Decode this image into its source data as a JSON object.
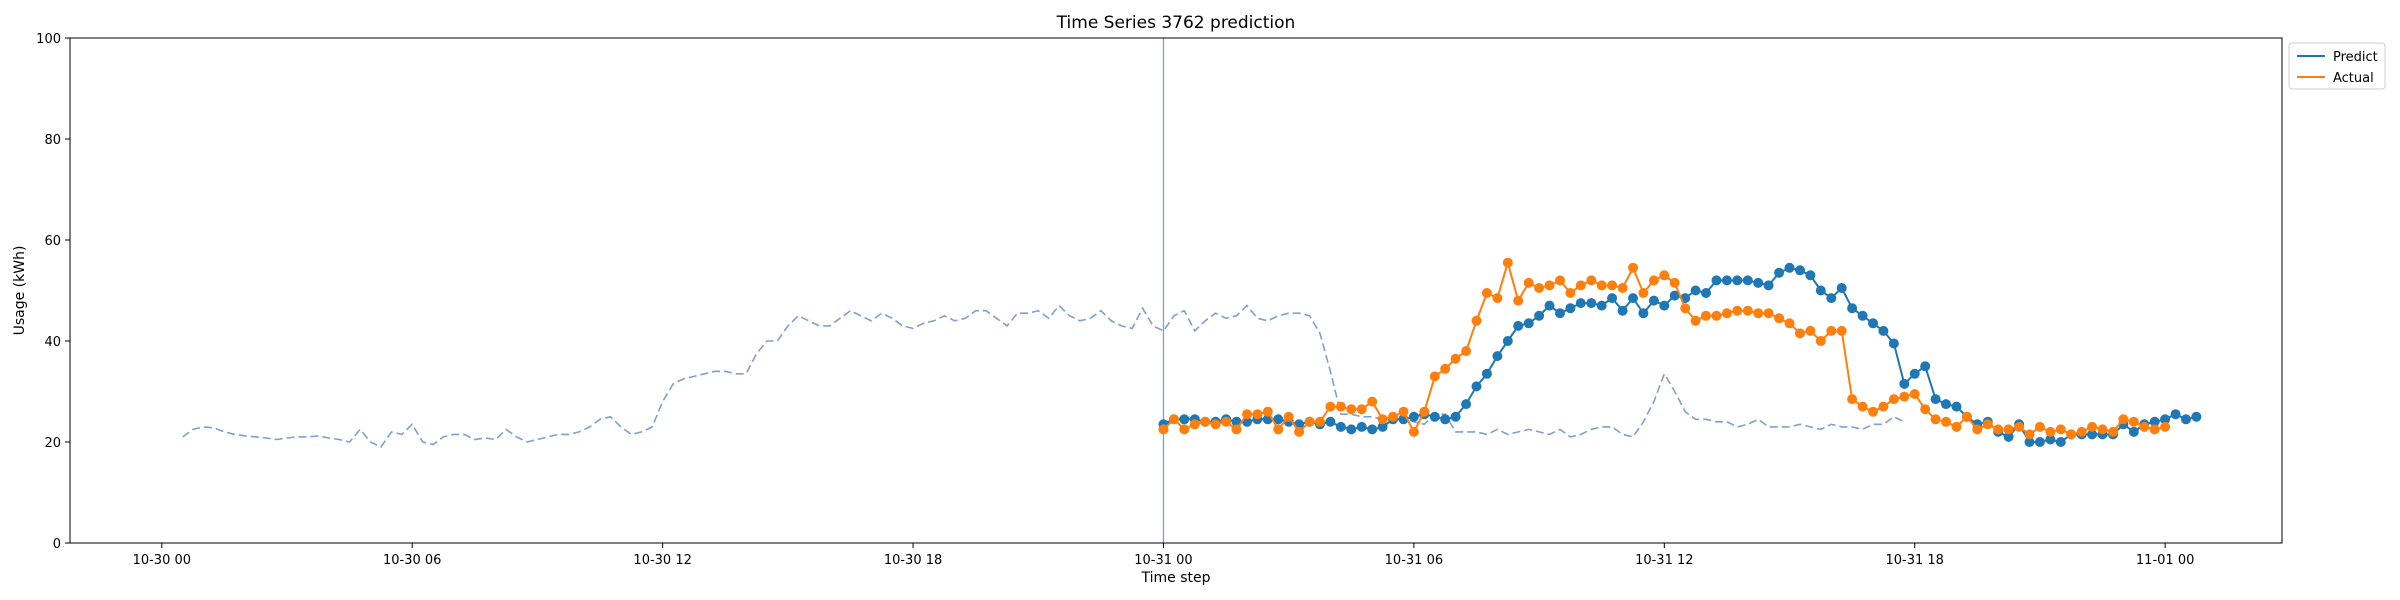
{
  "chart_data": {
    "type": "line",
    "title": "Time Series 3762 prediction",
    "xlabel": "Time step",
    "ylabel": "Usage (kWh)",
    "ylim": [
      0,
      100
    ],
    "yticks": [
      0,
      20,
      40,
      60,
      80,
      100
    ],
    "xlim_hours": [
      -2.2,
      50.8
    ],
    "xticks": [
      {
        "hour": 0,
        "label": "10-30 00"
      },
      {
        "hour": 6,
        "label": "10-30 06"
      },
      {
        "hour": 12,
        "label": "10-30 12"
      },
      {
        "hour": 18,
        "label": "10-30 18"
      },
      {
        "hour": 24,
        "label": "10-31 00"
      },
      {
        "hour": 30,
        "label": "10-31 06"
      },
      {
        "hour": 36,
        "label": "10-31 12"
      },
      {
        "hour": 42,
        "label": "10-31 18"
      },
      {
        "hour": 48,
        "label": "11-01 00"
      }
    ],
    "forecast_start_hour": 24.0,
    "step_hours": 0.25,
    "history": {
      "start_hour": 0.5,
      "values": [
        21,
        22.5,
        23,
        22.8,
        22,
        21.5,
        21.2,
        21,
        20.8,
        20.5,
        20.8,
        21,
        21,
        21.2,
        20.8,
        20.5,
        20,
        22.5,
        20,
        19,
        22,
        21.5,
        23.5,
        20,
        19.5,
        21,
        21.5,
        21.5,
        20.5,
        20.8,
        20.5,
        22.5,
        21,
        20,
        20.5,
        21,
        21.5,
        21.5,
        22,
        23,
        24.5,
        25,
        23,
        21.5,
        22,
        23,
        28,
        31.5,
        32.5,
        33,
        33.5,
        34,
        34,
        33.5,
        33.5,
        37.5,
        40,
        40,
        43,
        45,
        44,
        43,
        43,
        44.5,
        46,
        45,
        44,
        45.5,
        44.5,
        43,
        42.5,
        43.5,
        44,
        45,
        44,
        44.5,
        46,
        46,
        44.5,
        43,
        45.5,
        45.5,
        46,
        44.5,
        47,
        45,
        44,
        44.5,
        46,
        44,
        43,
        42.5,
        46.5,
        43,
        42,
        45,
        46,
        42,
        44,
        45.5,
        44.5,
        45,
        47,
        44.5,
        44,
        45,
        45.5,
        45.5,
        45,
        41.5,
        34,
        25.5,
        25.5,
        25,
        25,
        24.5,
        25,
        25,
        24,
        23.5,
        25.5,
        25.5,
        22,
        22,
        22,
        21.5,
        22.5,
        21.5,
        22,
        22.5,
        22,
        21.5,
        22.5,
        21,
        21.5,
        22.5,
        23,
        23,
        21.5,
        21,
        24,
        28,
        33.5,
        30,
        26,
        24.5,
        24.5,
        24,
        24,
        23,
        23.5,
        24.5,
        23,
        23,
        23,
        23.5,
        23,
        22.5,
        23.5,
        23,
        23,
        22.5,
        23.5,
        23.5,
        25,
        24
      ]
    },
    "series": [
      {
        "name": "Predict",
        "color": "#1f77b4",
        "start_hour": 24.0,
        "values": [
          23.5,
          24.5,
          24.5,
          24.5,
          24,
          24,
          24.5,
          24,
          24,
          24.5,
          24.5,
          24.5,
          24,
          23.5,
          24,
          23.5,
          24,
          23,
          22.5,
          23,
          22.5,
          23,
          24.5,
          24.5,
          25,
          25.5,
          25,
          24.5,
          25,
          27.5,
          31,
          33.5,
          37,
          40,
          43,
          43.5,
          45,
          47,
          45.5,
          46.5,
          47.5,
          47.5,
          47,
          48.5,
          46,
          48.5,
          45.5,
          48,
          47,
          49,
          48.5,
          50,
          49.5,
          52,
          52,
          52,
          52,
          51.5,
          51,
          53.5,
          54.5,
          54,
          53,
          50,
          48.5,
          50.5,
          46.5,
          45,
          43.5,
          42,
          39.5,
          31.5,
          33.5,
          35,
          28.5,
          27.5,
          27,
          25,
          23.5,
          24,
          22,
          21,
          23.5,
          20,
          20,
          20.5,
          20,
          21.5,
          21.5,
          21.5,
          21.5,
          21.5,
          23.5,
          22,
          23.5,
          24,
          24.5,
          25.5,
          24.5,
          25
        ]
      },
      {
        "name": "Actual",
        "color": "#ff7f0e",
        "start_hour": 24.0,
        "values": [
          22.5,
          24.5,
          22.5,
          23.5,
          24,
          23.5,
          24,
          22.5,
          25.5,
          25.5,
          26,
          22.5,
          25,
          22,
          24,
          24,
          27,
          27,
          26.5,
          26.5,
          28,
          24.5,
          25,
          26,
          22,
          26,
          33,
          34.5,
          36.5,
          38,
          44,
          49.5,
          48.5,
          55.5,
          48,
          51.5,
          50.5,
          51,
          52,
          49.5,
          51,
          52,
          51,
          51,
          50.5,
          54.5,
          49.5,
          52,
          53,
          51.5,
          46.5,
          44,
          45,
          45,
          45.5,
          46,
          46,
          45.5,
          45.5,
          44.5,
          43.5,
          41.5,
          42,
          40,
          42,
          42,
          28.5,
          27,
          26,
          27,
          28.5,
          29,
          29.5,
          26.5,
          24.5,
          24,
          23,
          25,
          22.5,
          23.5,
          22.5,
          22.5,
          23,
          21.5,
          23,
          22,
          22.5,
          21.5,
          22,
          23,
          22.5,
          22,
          24.5,
          24,
          23,
          22.5,
          23
        ]
      }
    ],
    "legend": {
      "position": "upper-right-outside",
      "entries": [
        "Predict",
        "Actual"
      ]
    },
    "grid": false
  }
}
